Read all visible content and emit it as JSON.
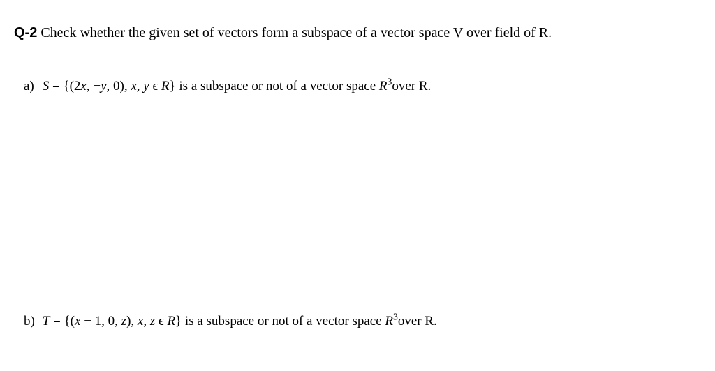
{
  "document": {
    "text_color": "#000000",
    "background_color": "#ffffff",
    "font_family": "Georgia, 'Times New Roman', serif",
    "font_size_main": 20,
    "font_size_parts": 19
  },
  "question": {
    "label": "Q-2",
    "prompt": "Check whether the given set of vectors form a subspace of a vector space V over field of R."
  },
  "parts": {
    "a": {
      "label": "a)",
      "set_name": "S",
      "equals": " = ",
      "set_open": "{(2",
      "var_x1": "x",
      "comma_neg": ", −",
      "var_y1": "y",
      "comma_zero": ", 0), ",
      "var_x2": "x",
      "comma_mid": ", ",
      "var_y2": "y",
      "in": " ϵ ",
      "field": "R",
      "set_close": "}",
      "tail1": " is a subspace or not of a vector space ",
      "space": "R",
      "exp": "3",
      "tail2": "over R."
    },
    "b": {
      "label": "b)",
      "set_name": "T",
      "equals": " = ",
      "set_open": "{(",
      "var_x1": "x",
      "minus1": " − 1, 0, ",
      "var_z1": "z",
      "paren_close": "), ",
      "var_x2": "x",
      "comma_mid": ", ",
      "var_z2": "z",
      "in": " ϵ ",
      "field": "R",
      "set_close": "}",
      "tail1": " is a subspace or not of a vector space ",
      "space": "R",
      "exp": "3",
      "tail2": "over R."
    }
  }
}
